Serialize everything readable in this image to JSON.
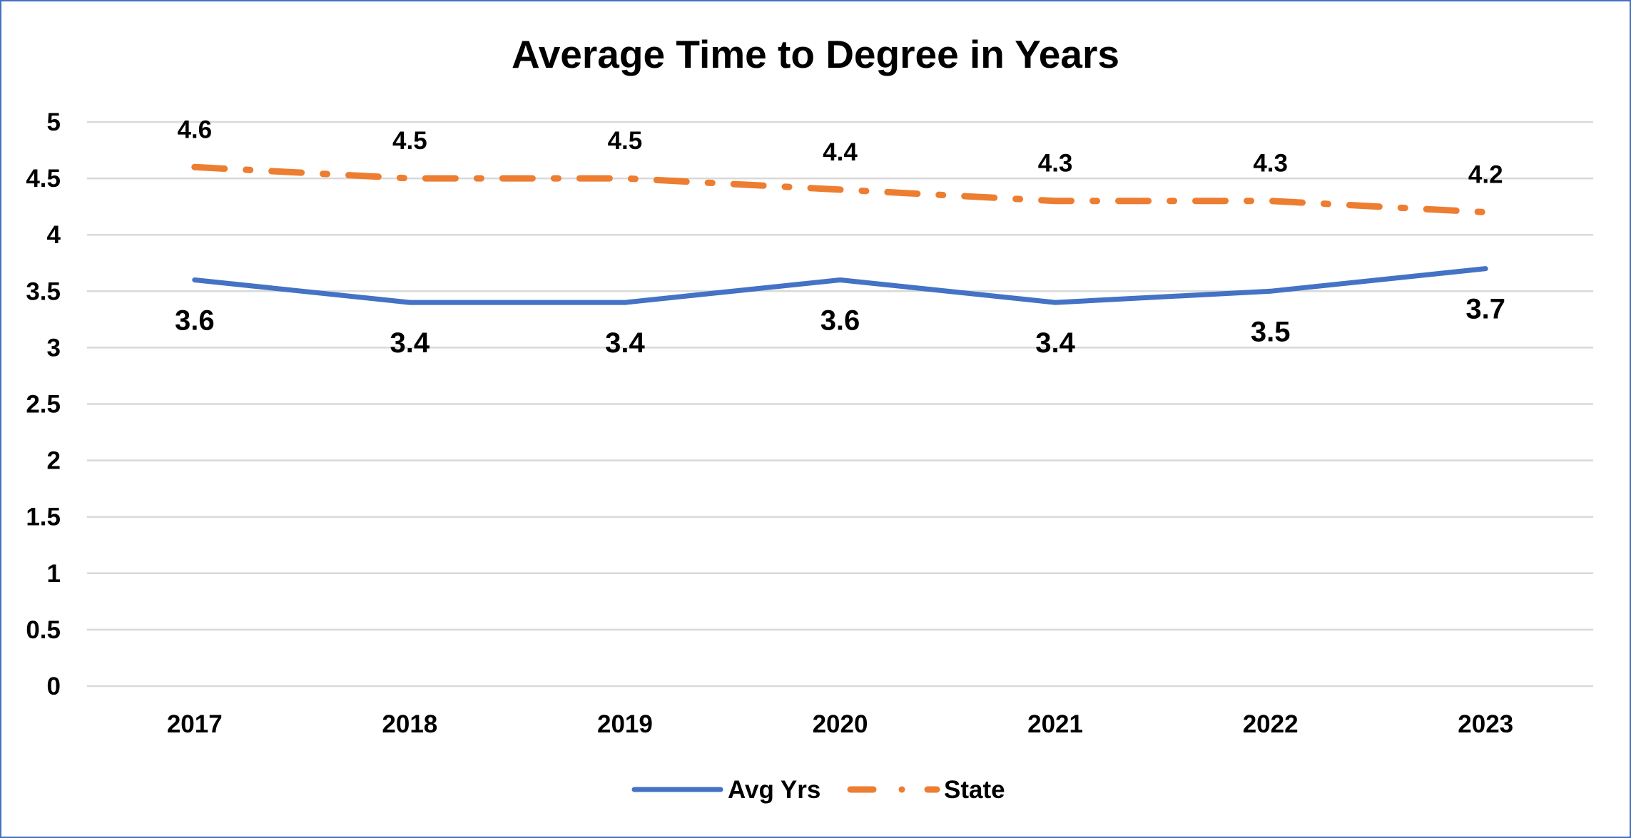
{
  "chart_data": {
    "type": "line",
    "title": "Average Time to Degree in Years",
    "xlabel": "",
    "ylabel": "",
    "categories": [
      "2017",
      "2018",
      "2019",
      "2020",
      "2021",
      "2022",
      "2023"
    ],
    "ylim": [
      0,
      5
    ],
    "yticks": [
      "0",
      "0.5",
      "1",
      "1.5",
      "2",
      "2.5",
      "3",
      "3.5",
      "4",
      "4.5",
      "5"
    ],
    "grid": true,
    "legend_position": "bottom",
    "series": [
      {
        "name": "Avg Yrs",
        "values": [
          3.6,
          3.4,
          3.4,
          3.6,
          3.4,
          3.5,
          3.7
        ],
        "labels": [
          "3.6",
          "3.4",
          "3.4",
          "3.6",
          "3.4",
          "3.5",
          "3.7"
        ],
        "color": "#4472c4",
        "style": "solid",
        "label_position": "below"
      },
      {
        "name": "State",
        "values": [
          4.6,
          4.5,
          4.5,
          4.4,
          4.3,
          4.3,
          4.2
        ],
        "labels": [
          "4.6",
          "4.5",
          "4.5",
          "4.4",
          "4.3",
          "4.3",
          "4.2"
        ],
        "color": "#ed7d31",
        "style": "dash-dot",
        "label_position": "above"
      }
    ],
    "gridline_color": "#d9d9d9",
    "border_color": "#4472c4"
  }
}
